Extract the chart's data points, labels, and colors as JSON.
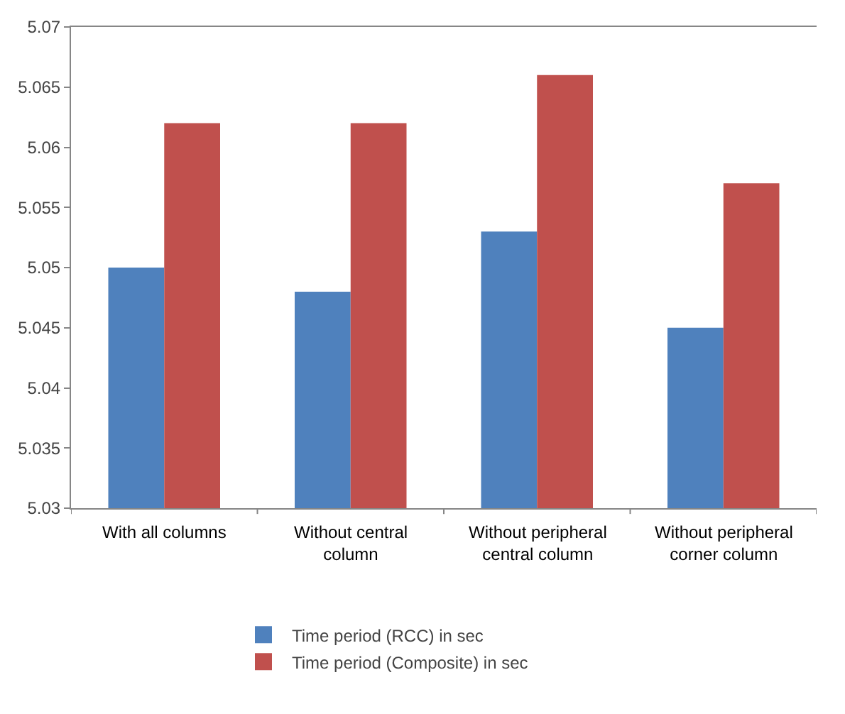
{
  "chart_data": {
    "type": "bar",
    "categories": [
      "With all columns",
      "Without central column",
      "Without peripheral central column",
      "Without peripheral corner column"
    ],
    "series": [
      {
        "name": "Time period (RCC) in sec",
        "color": "#4f81bd",
        "values": [
          5.05,
          5.048,
          5.053,
          5.045
        ]
      },
      {
        "name": "Time period (Composite) in sec",
        "color": "#c0504d",
        "values": [
          5.062,
          5.062,
          5.066,
          5.057
        ]
      }
    ],
    "ylim": [
      5.03,
      5.07
    ],
    "yticks": [
      5.03,
      5.035,
      5.04,
      5.045,
      5.05,
      5.055,
      5.06,
      5.065,
      5.07
    ],
    "grid": false,
    "legend": "bottom"
  }
}
